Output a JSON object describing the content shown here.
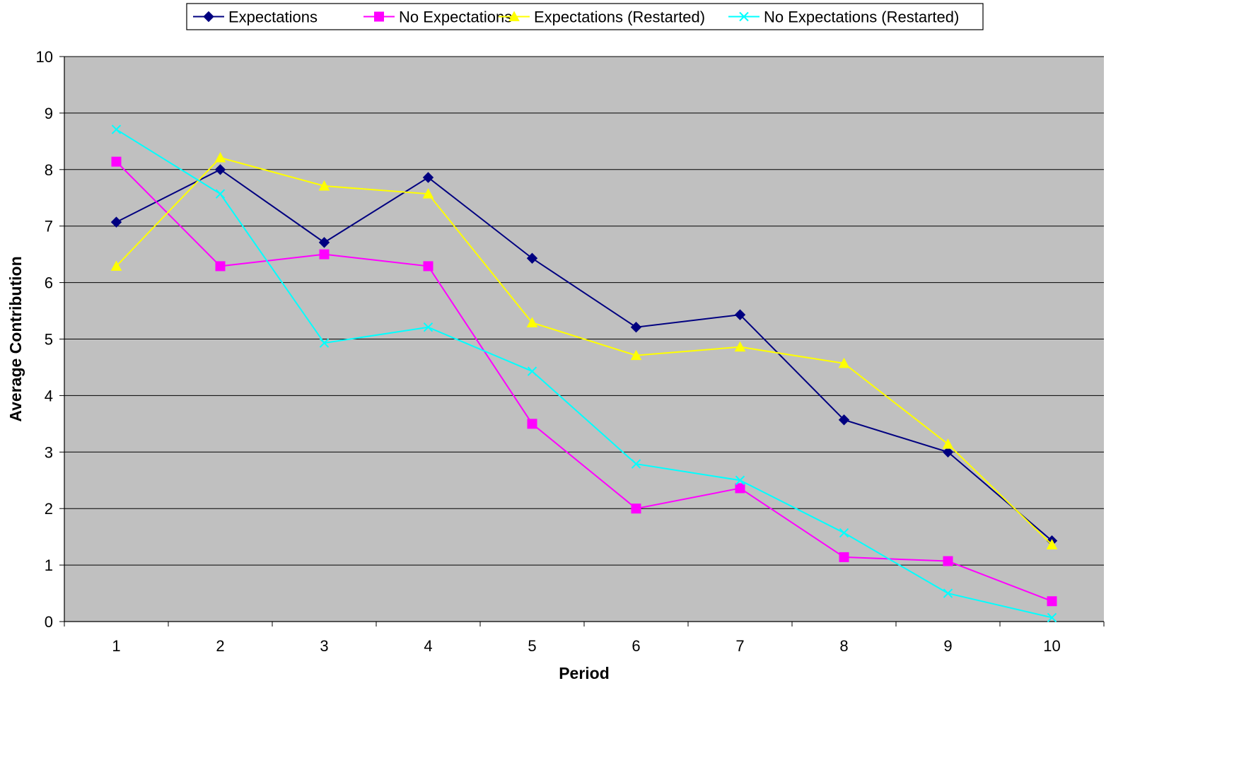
{
  "chart_data": {
    "type": "line",
    "title": "",
    "xlabel": "Period",
    "ylabel": "Average Contribution",
    "x": [
      1,
      2,
      3,
      4,
      5,
      6,
      7,
      8,
      9,
      10
    ],
    "ylim": [
      0,
      10
    ],
    "yticks": [
      0,
      1,
      2,
      3,
      4,
      5,
      6,
      7,
      8,
      9,
      10
    ],
    "grid": "horizontal",
    "plot_background": "#c0c0c0",
    "legend_position": "top-center",
    "series": [
      {
        "name": "Expectations",
        "color": "#000080",
        "marker": "diamond",
        "values": [
          7.07,
          8.0,
          6.71,
          7.86,
          6.43,
          5.21,
          5.43,
          3.57,
          3.0,
          1.43
        ]
      },
      {
        "name": "No Expectations",
        "color": "#ff00ff",
        "marker": "square",
        "values": [
          8.14,
          6.29,
          6.5,
          6.29,
          3.5,
          2.0,
          2.36,
          1.14,
          1.07,
          0.36
        ]
      },
      {
        "name": "Expectations (Restarted)",
        "color": "#ffff00",
        "marker": "triangle",
        "values": [
          6.29,
          8.21,
          7.71,
          7.57,
          5.29,
          4.71,
          4.86,
          4.57,
          3.14,
          1.36
        ]
      },
      {
        "name": "No Expectations (Restarted)",
        "color": "#00ffff",
        "marker": "x",
        "values": [
          8.71,
          7.57,
          4.93,
          5.21,
          4.43,
          2.79,
          2.5,
          1.57,
          0.5,
          0.07
        ]
      }
    ]
  }
}
